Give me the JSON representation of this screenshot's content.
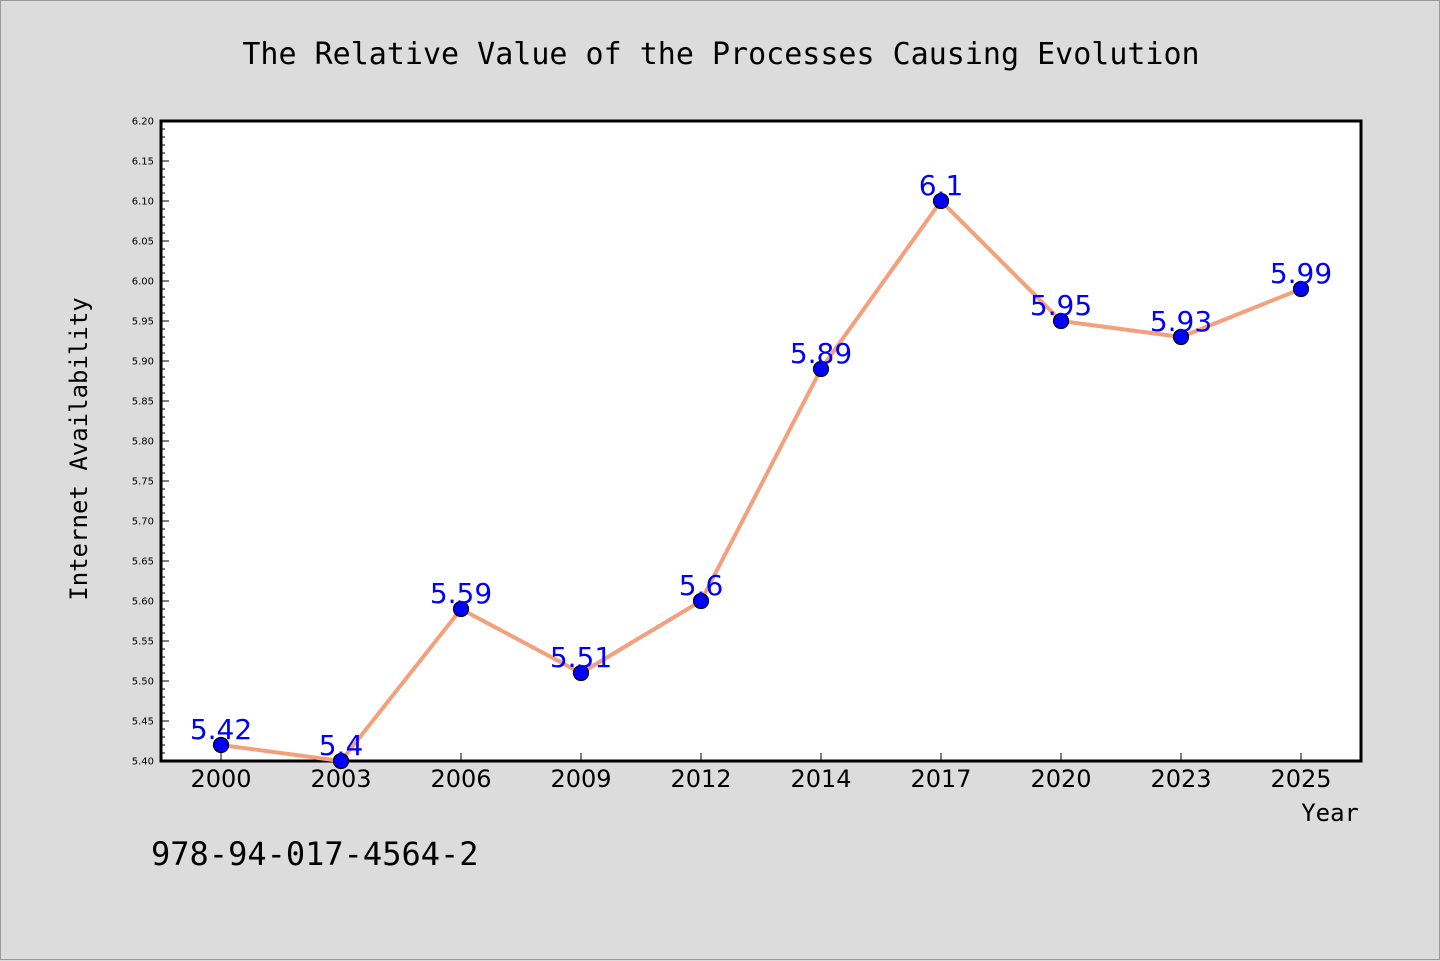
{
  "chart_data": {
    "type": "line",
    "title": "The Relative Value of the Processes Causing Evolution",
    "xlabel": "Year",
    "ylabel": "Internet Availability",
    "categories": [
      "2000",
      "2003",
      "2006",
      "2009",
      "2012",
      "2014",
      "2017",
      "2020",
      "2023",
      "2025"
    ],
    "series": [
      {
        "values": [
          5.42,
          5.4,
          5.59,
          5.51,
          5.6,
          5.89,
          6.1,
          5.95,
          5.93,
          5.99
        ]
      }
    ],
    "data_labels": [
      "5.42",
      "5.4",
      "5.59",
      "5.51",
      "5.6",
      "5.89",
      "6.1",
      "5.95",
      "5.93",
      "5.99"
    ],
    "ylim": [
      5.4,
      6.2
    ],
    "yticks": [
      "5.40",
      "5.45",
      "5.50",
      "5.55",
      "5.60",
      "5.65",
      "5.70",
      "5.75",
      "5.80",
      "5.85",
      "5.90",
      "5.95",
      "6.00",
      "6.05",
      "6.10",
      "6.15",
      "6.20"
    ],
    "grid": false,
    "legend": "none",
    "line_color": "#f4a07c",
    "marker_color": "#0000ff",
    "label_color": "#0000ff",
    "annotation": "978-94-017-4564-2"
  }
}
